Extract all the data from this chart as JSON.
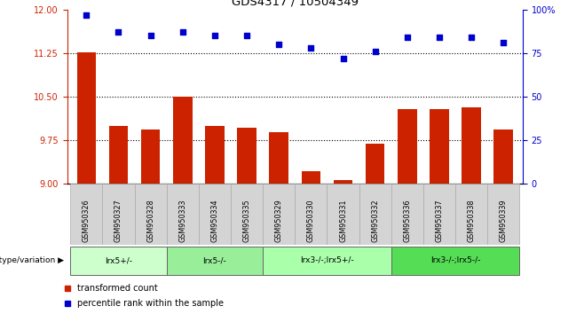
{
  "title": "GDS4317 / 10504349",
  "samples": [
    "GSM950326",
    "GSM950327",
    "GSM950328",
    "GSM950333",
    "GSM950334",
    "GSM950335",
    "GSM950329",
    "GSM950330",
    "GSM950331",
    "GSM950332",
    "GSM950336",
    "GSM950337",
    "GSM950338",
    "GSM950339"
  ],
  "bar_values": [
    11.26,
    10.0,
    9.93,
    10.5,
    10.0,
    9.97,
    9.88,
    9.22,
    9.06,
    9.69,
    10.28,
    10.28,
    10.32,
    9.93
  ],
  "scatter_values": [
    97,
    87,
    85,
    87,
    85,
    85,
    80,
    78,
    72,
    76,
    84,
    84,
    84,
    81
  ],
  "bar_color": "#cc2200",
  "scatter_color": "#0000cc",
  "ylim_left": [
    9.0,
    12.0
  ],
  "ylim_right": [
    0,
    100
  ],
  "yticks_left": [
    9.0,
    9.75,
    10.5,
    11.25,
    12.0
  ],
  "yticks_right": [
    0,
    25,
    50,
    75,
    100
  ],
  "hlines": [
    9.75,
    10.5,
    11.25
  ],
  "groups": [
    {
      "label": "lrx5+/-",
      "start": 0,
      "end": 3,
      "color": "#ccffcc"
    },
    {
      "label": "lrx5-/-",
      "start": 3,
      "end": 6,
      "color": "#99ee99"
    },
    {
      "label": "lrx3-/-;lrx5+/-",
      "start": 6,
      "end": 10,
      "color": "#aaffaa"
    },
    {
      "label": "lrx3-/-;lrx5-/-",
      "start": 10,
      "end": 14,
      "color": "#55dd55"
    }
  ],
  "legend_bar_label": "transformed count",
  "legend_scatter_label": "percentile rank within the sample",
  "genotype_label": "genotype/variation"
}
